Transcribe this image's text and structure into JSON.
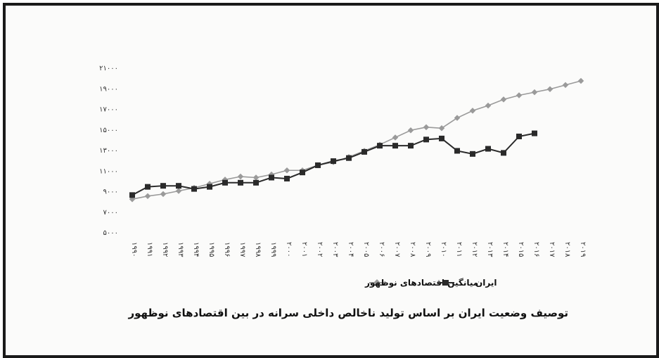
{
  "chart_data": {
    "type": "line",
    "title": "توصیف وضعیت ایران بر اساس تولید ناخالص داخلی سرانه در بین اقتصادهای نوظهور",
    "xlabel": "",
    "ylabel": "",
    "ylim": [
      5000,
      21000
    ],
    "yticks": [
      "۵۰۰۰",
      "۷۰۰۰",
      "۹۰۰۰",
      "۱۱۰۰۰",
      "۱۳۰۰۰",
      "۱۵۰۰۰",
      "۱۷۰۰۰",
      "۱۹۰۰۰",
      "۲۱۰۰۰"
    ],
    "ytick_values": [
      5000,
      7000,
      9000,
      11000,
      13000,
      15000,
      17000,
      19000,
      21000
    ],
    "x": [
      "۱۹۹۰",
      "۱۹۹۱",
      "۱۹۹۲",
      "۱۹۹۳",
      "۱۹۹۴",
      "۱۹۹۵",
      "۱۹۹۶",
      "۱۹۹۷",
      "۱۹۹۸",
      "۱۹۹۹",
      "۲۰۰۰",
      "۲۰۰۱",
      "۲۰۰۲",
      "۲۰۰۳",
      "۲۰۰۴",
      "۲۰۰۵",
      "۲۰۰۶",
      "۲۰۰۷",
      "۲۰۰۸",
      "۲۰۰۹",
      "۲۰۱۰",
      "۲۰۱۱",
      "۲۰۱۲",
      "۲۰۱۳",
      "۲۰۱۴",
      "۲۰۱۵",
      "۲۰۱۶",
      "۲۰۱۷",
      "۲۰۱۸",
      "۲۰۱۹"
    ],
    "series": [
      {
        "name": "میانگین اقتصادهای نوظهور",
        "color": "#9a9a9a",
        "marker": "diamond",
        "values": [
          8200,
          8500,
          8700,
          9000,
          9300,
          9700,
          10100,
          10400,
          10300,
          10600,
          11000,
          11000,
          11500,
          11800,
          12300,
          12900,
          13500,
          14200,
          14900,
          15200,
          15100,
          16100,
          16800,
          17300,
          17900,
          18300,
          18600,
          18900,
          19300,
          19700
        ]
      },
      {
        "name": "ایران",
        "color": "#2a2a2a",
        "marker": "square",
        "values": [
          8600,
          9400,
          9500,
          9500,
          9200,
          9400,
          9800,
          9800,
          9800,
          10300,
          10200,
          10800,
          11500,
          11900,
          12200,
          12800,
          13400,
          13400,
          13400,
          14000,
          14100,
          12900,
          12600,
          13100,
          12700,
          14300,
          14600,
          null,
          null,
          null
        ]
      }
    ],
    "legend": "bottom"
  }
}
